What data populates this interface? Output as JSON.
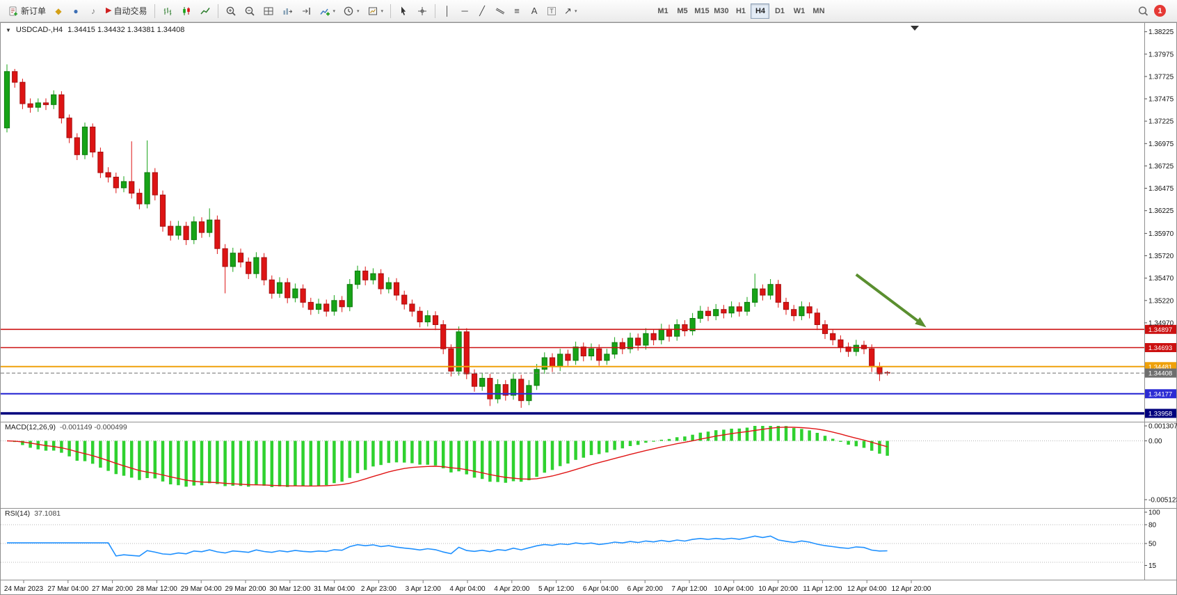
{
  "toolbar": {
    "new_order_label": "新订单",
    "auto_trading_label": "自动交易",
    "badge_count": "1",
    "timeframes": [
      "M1",
      "M5",
      "M15",
      "M30",
      "H1",
      "H4",
      "D1",
      "W1",
      "MN"
    ],
    "active_timeframe": "H4",
    "glyphs": {
      "metaeditor": "◆",
      "terminal": "●",
      "sounds": "♪",
      "autotrading_play": "▶",
      "vertical_line": "│",
      "horizontal_line": "─",
      "trendline": "╱",
      "channel": "∥",
      "fibonacci": "≡",
      "text": "A",
      "text_label": "T",
      "arrows": "↗",
      "dropdown": "▾"
    },
    "icon_names": [
      "new-order-icon",
      "metaeditor-icon",
      "terminal-icon",
      "sounds-icon",
      "autotrading-icon",
      "bar-chart-icon",
      "candlestick-chart-icon",
      "line-chart-icon",
      "zoom-in-icon",
      "zoom-out-icon",
      "tile-windows-icon",
      "auto-scroll-icon",
      "chart-shift-icon",
      "indicators-icon",
      "periods-icon",
      "templates-icon",
      "cursor-icon",
      "crosshair-icon",
      "vertical-line-icon",
      "horizontal-line-icon",
      "trendline-icon",
      "equidistant-channel-icon",
      "fibonacci-icon",
      "text-icon",
      "text-label-icon",
      "arrows-icon",
      "search-icon",
      "notification-badge"
    ]
  },
  "chart": {
    "symbol_caret": "▼",
    "symbol": "USDCAD-,H4",
    "ohlc": "1.34415 1.34432 1.34381 1.34408"
  },
  "chart_data": [
    {
      "type": "candlestick",
      "title": "USDCAD- H4",
      "ylim": [
        1.3388,
        1.383
      ],
      "y_axis_ticks": [
        "1.38225",
        "1.37975",
        "1.37725",
        "1.37475",
        "1.37225",
        "1.36975",
        "1.36725",
        "1.36475",
        "1.36225",
        "1.35970",
        "1.35720",
        "1.35470",
        "1.35220",
        "1.34970"
      ],
      "x_axis_labels": [
        "24 Mar 2023",
        "27 Mar 04:00",
        "27 Mar 20:00",
        "28 Mar 12:00",
        "29 Mar 04:00",
        "29 Mar 20:00",
        "30 Mar 12:00",
        "31 Mar 04:00",
        "2 Apr 23:00",
        "3 Apr 12:00",
        "4 Apr 04:00",
        "4 Apr 20:00",
        "5 Apr 12:00",
        "6 Apr 04:00",
        "6 Apr 20:00",
        "7 Apr 12:00",
        "10 Apr 04:00",
        "10 Apr 20:00",
        "11 Apr 12:00",
        "12 Apr 04:00",
        "12 Apr 20:00"
      ],
      "horizontal_levels": [
        {
          "price": "1.34897",
          "value": 1.34897,
          "color": "#cc1111",
          "width": 1.6,
          "style": "solid"
        },
        {
          "price": "1.34693",
          "value": 1.34693,
          "color": "#cc1111",
          "width": 1.6,
          "style": "solid"
        },
        {
          "price": "1.34481",
          "value": 1.34481,
          "color": "#efa10a",
          "width": 2,
          "style": "solid"
        },
        {
          "price": "1.34408",
          "value": 1.34408,
          "color": "#6e6e6e",
          "width": 1,
          "style": "dashed",
          "kind": "current-price"
        },
        {
          "price": "1.34177",
          "value": 1.34177,
          "color": "#2b2bd4",
          "width": 2.2,
          "style": "solid"
        },
        {
          "price": "1.33958",
          "value": 1.33958,
          "color": "#00007d",
          "width": 3.5,
          "style": "solid"
        }
      ],
      "annotation_arrow": {
        "from_bar": 109,
        "from_price": 1.3551,
        "to_bar": 118,
        "to_price": 1.3492,
        "color": "#5a8f2f"
      },
      "up_color": "#17a317",
      "down_color": "#dd1414",
      "candles": [
        [
          1.3715,
          1.3786,
          1.371,
          1.3778
        ],
        [
          1.3778,
          1.3781,
          1.376,
          1.3766
        ],
        [
          1.3766,
          1.377,
          1.3736,
          1.3742
        ],
        [
          1.3742,
          1.3748,
          1.3732,
          1.3738
        ],
        [
          1.3738,
          1.3748,
          1.3733,
          1.3743
        ],
        [
          1.3743,
          1.3748,
          1.3735,
          1.3741
        ],
        [
          1.3741,
          1.3757,
          1.3736,
          1.3752
        ],
        [
          1.3752,
          1.3756,
          1.372,
          1.3726
        ],
        [
          1.3726,
          1.373,
          1.3698,
          1.3704
        ],
        [
          1.3704,
          1.3709,
          1.3679,
          1.3685
        ],
        [
          1.3685,
          1.3721,
          1.368,
          1.3716
        ],
        [
          1.3716,
          1.372,
          1.3682,
          1.3688
        ],
        [
          1.3688,
          1.3693,
          1.3659,
          1.3665
        ],
        [
          1.3665,
          1.3671,
          1.3654,
          1.366
        ],
        [
          1.366,
          1.3665,
          1.3642,
          1.3648
        ],
        [
          1.3648,
          1.3661,
          1.3643,
          1.3655
        ],
        [
          1.3655,
          1.37,
          1.3636,
          1.3642
        ],
        [
          1.3642,
          1.3647,
          1.3624,
          1.363
        ],
        [
          1.363,
          1.3701,
          1.3625,
          1.3665
        ],
        [
          1.3665,
          1.367,
          1.3634,
          1.364
        ],
        [
          1.364,
          1.3645,
          1.3599,
          1.3605
        ],
        [
          1.3605,
          1.3611,
          1.3589,
          1.3595
        ],
        [
          1.3595,
          1.3611,
          1.359,
          1.3605
        ],
        [
          1.3605,
          1.361,
          1.3584,
          1.359
        ],
        [
          1.359,
          1.3616,
          1.3585,
          1.361
        ],
        [
          1.361,
          1.3615,
          1.3592,
          1.3598
        ],
        [
          1.3598,
          1.3625,
          1.3593,
          1.3612
        ],
        [
          1.3612,
          1.3617,
          1.3574,
          1.358
        ],
        [
          1.358,
          1.3585,
          1.353,
          1.356
        ],
        [
          1.356,
          1.3581,
          1.3554,
          1.3575
        ],
        [
          1.3575,
          1.358,
          1.3559,
          1.3565
        ],
        [
          1.3565,
          1.357,
          1.3546,
          1.3552
        ],
        [
          1.3552,
          1.3576,
          1.3547,
          1.357
        ],
        [
          1.357,
          1.3575,
          1.3539,
          1.3545
        ],
        [
          1.3545,
          1.355,
          1.3524,
          1.353
        ],
        [
          1.353,
          1.3548,
          1.3525,
          1.3542
        ],
        [
          1.3542,
          1.3547,
          1.3519,
          1.3525
        ],
        [
          1.3525,
          1.3541,
          1.352,
          1.3535
        ],
        [
          1.3535,
          1.354,
          1.3514,
          1.352
        ],
        [
          1.352,
          1.3525,
          1.3506,
          1.3512
        ],
        [
          1.3512,
          1.3524,
          1.3507,
          1.3518
        ],
        [
          1.3518,
          1.3523,
          1.3504,
          1.351
        ],
        [
          1.351,
          1.3528,
          1.3505,
          1.3522
        ],
        [
          1.3522,
          1.3527,
          1.3509,
          1.3515
        ],
        [
          1.3515,
          1.3546,
          1.351,
          1.354
        ],
        [
          1.354,
          1.3561,
          1.3535,
          1.3555
        ],
        [
          1.3555,
          1.356,
          1.3539,
          1.3545
        ],
        [
          1.3545,
          1.3558,
          1.354,
          1.3552
        ],
        [
          1.3552,
          1.3557,
          1.3529,
          1.3535
        ],
        [
          1.3535,
          1.3548,
          1.353,
          1.3542
        ],
        [
          1.3542,
          1.3547,
          1.3522,
          1.3528
        ],
        [
          1.3528,
          1.3533,
          1.3512,
          1.3518
        ],
        [
          1.3518,
          1.3523,
          1.3504,
          1.351
        ],
        [
          1.351,
          1.3515,
          1.3492,
          1.3498
        ],
        [
          1.3498,
          1.3511,
          1.3493,
          1.3505
        ],
        [
          1.3505,
          1.351,
          1.3489,
          1.3495
        ],
        [
          1.3495,
          1.35,
          1.3462,
          1.3468
        ],
        [
          1.3468,
          1.3473,
          1.3437,
          1.3443
        ],
        [
          1.3443,
          1.3493,
          1.3438,
          1.3487
        ],
        [
          1.3487,
          1.3491,
          1.3434,
          1.344
        ],
        [
          1.344,
          1.3445,
          1.342,
          1.3426
        ],
        [
          1.3426,
          1.3441,
          1.3421,
          1.3435
        ],
        [
          1.3435,
          1.344,
          1.3404,
          1.3412
        ],
        [
          1.3412,
          1.3434,
          1.3407,
          1.3428
        ],
        [
          1.3428,
          1.3433,
          1.341,
          1.3416
        ],
        [
          1.3416,
          1.344,
          1.3411,
          1.3434
        ],
        [
          1.3434,
          1.3439,
          1.3402,
          1.341
        ],
        [
          1.341,
          1.3433,
          1.3405,
          1.3427
        ],
        [
          1.3427,
          1.3451,
          1.3422,
          1.3445
        ],
        [
          1.3445,
          1.3464,
          1.344,
          1.3458
        ],
        [
          1.3458,
          1.3463,
          1.3442,
          1.3448
        ],
        [
          1.3448,
          1.3468,
          1.3443,
          1.3462
        ],
        [
          1.3462,
          1.3467,
          1.3449,
          1.3455
        ],
        [
          1.3455,
          1.3476,
          1.345,
          1.347
        ],
        [
          1.347,
          1.3475,
          1.3454,
          1.346
        ],
        [
          1.346,
          1.3474,
          1.3455,
          1.3468
        ],
        [
          1.3468,
          1.3473,
          1.3449,
          1.3455
        ],
        [
          1.3455,
          1.3468,
          1.345,
          1.3462
        ],
        [
          1.3462,
          1.3481,
          1.3457,
          1.3475
        ],
        [
          1.3475,
          1.348,
          1.3462,
          1.3468
        ],
        [
          1.3468,
          1.3486,
          1.3463,
          1.348
        ],
        [
          1.348,
          1.3485,
          1.3466,
          1.3472
        ],
        [
          1.3472,
          1.3491,
          1.3467,
          1.3485
        ],
        [
          1.3485,
          1.349,
          1.3472,
          1.3478
        ],
        [
          1.3478,
          1.3496,
          1.3473,
          1.349
        ],
        [
          1.349,
          1.3495,
          1.3476,
          1.3482
        ],
        [
          1.3482,
          1.3501,
          1.3477,
          1.3495
        ],
        [
          1.3495,
          1.35,
          1.3482,
          1.3488
        ],
        [
          1.3488,
          1.3508,
          1.3483,
          1.3502
        ],
        [
          1.3502,
          1.3516,
          1.3497,
          1.351
        ],
        [
          1.351,
          1.3515,
          1.3499,
          1.3505
        ],
        [
          1.3505,
          1.3518,
          1.35,
          1.3512
        ],
        [
          1.3512,
          1.3517,
          1.3502,
          1.3508
        ],
        [
          1.3508,
          1.3521,
          1.3503,
          1.3515
        ],
        [
          1.3515,
          1.352,
          1.3504,
          1.351
        ],
        [
          1.351,
          1.3526,
          1.3505,
          1.352
        ],
        [
          1.352,
          1.3552,
          1.3515,
          1.3535
        ],
        [
          1.3535,
          1.354,
          1.3522,
          1.3528
        ],
        [
          1.3528,
          1.3546,
          1.3523,
          1.354
        ],
        [
          1.354,
          1.3545,
          1.3514,
          1.352
        ],
        [
          1.352,
          1.3525,
          1.3506,
          1.3512
        ],
        [
          1.3512,
          1.3517,
          1.3499,
          1.3505
        ],
        [
          1.3505,
          1.3521,
          1.35,
          1.3515
        ],
        [
          1.3515,
          1.352,
          1.3502,
          1.3508
        ],
        [
          1.3508,
          1.3513,
          1.3489,
          1.3495
        ],
        [
          1.3495,
          1.35,
          1.3479,
          1.3485
        ],
        [
          1.3485,
          1.349,
          1.3472,
          1.3478
        ],
        [
          1.3478,
          1.3483,
          1.3464,
          1.347
        ],
        [
          1.347,
          1.3475,
          1.3459,
          1.3465
        ],
        [
          1.3465,
          1.3478,
          1.346,
          1.3472
        ],
        [
          1.3472,
          1.3477,
          1.3462,
          1.3468
        ],
        [
          1.3468,
          1.3473,
          1.3442,
          1.3448
        ],
        [
          1.3448,
          1.3453,
          1.3432,
          1.344
        ],
        [
          1.34415,
          1.34432,
          1.34381,
          1.34408
        ]
      ]
    },
    {
      "type": "bar",
      "name": "MACD",
      "label": "MACD(12,26,9)",
      "values_text": "-0.001149 -0.000499",
      "ylim": [
        -0.005123,
        0.001307
      ],
      "y_axis_ticks": [
        "0.001307",
        "0.00",
        "-0.005123"
      ],
      "histogram_color": "#2fd12f",
      "signal_color": "#e01515"
    },
    {
      "type": "line",
      "name": "RSI",
      "label": "RSI(14)",
      "values_text": "37.1081",
      "ylim": [
        0,
        100
      ],
      "y_axis_ticks": [
        "100",
        "80",
        "50",
        "15"
      ],
      "levels": [
        80,
        50,
        20
      ],
      "line_color": "#1e90ff"
    }
  ]
}
